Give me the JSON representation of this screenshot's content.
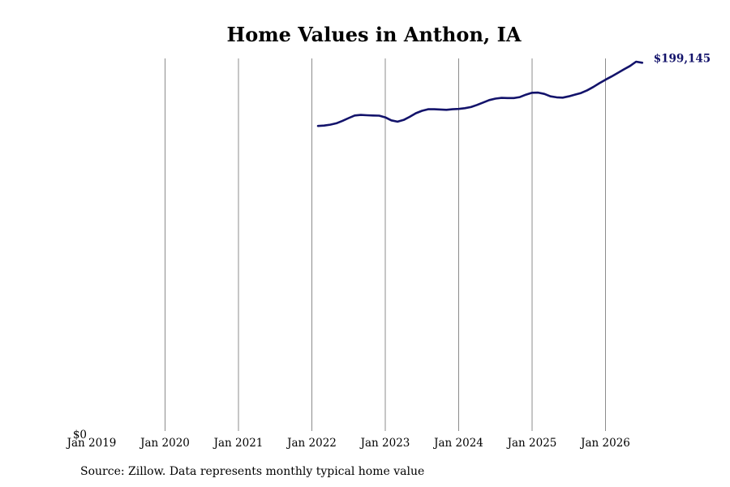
{
  "chart_data": {
    "type": "line",
    "title": "Home Values in Anthon, IA",
    "xlabel": "",
    "ylabel": "",
    "x_ticks": [
      "Jan 2019",
      "Jan 2020",
      "Jan 2021",
      "Jan 2022",
      "Jan 2023",
      "Jan 2024",
      "Jan 2025",
      "Jan 2026"
    ],
    "y_ticks": [
      "$0"
    ],
    "xlim": [
      "2019-01",
      "2026-08"
    ],
    "ylim": [
      0,
      201000
    ],
    "grid": "vertical",
    "line_color": "#13136b",
    "series": [
      {
        "x": [
          "2022-02",
          "2022-03",
          "2022-04",
          "2022-05",
          "2022-06",
          "2022-07",
          "2022-08",
          "2022-09",
          "2022-10",
          "2022-11",
          "2022-12",
          "2023-01",
          "2023-02",
          "2023-03",
          "2023-04",
          "2023-05",
          "2023-06",
          "2023-07",
          "2023-08",
          "2023-09",
          "2023-10",
          "2023-11",
          "2023-12",
          "2024-01",
          "2024-02",
          "2024-03",
          "2024-04",
          "2024-05",
          "2024-06",
          "2024-07",
          "2024-08",
          "2024-09",
          "2024-10",
          "2024-11",
          "2024-12",
          "2025-01",
          "2025-02",
          "2025-03",
          "2025-04",
          "2025-05",
          "2025-06",
          "2025-07",
          "2025-08",
          "2025-09",
          "2025-10",
          "2025-11",
          "2025-12",
          "2026-01",
          "2026-02",
          "2026-03",
          "2026-04",
          "2026-05",
          "2026-06",
          "2026-07"
        ],
        "values": [
          165400,
          165600,
          166100,
          166800,
          168100,
          169600,
          171000,
          171300,
          171100,
          171000,
          170900,
          170000,
          168400,
          167700,
          168600,
          170300,
          172200,
          173500,
          174300,
          174300,
          174200,
          174000,
          174300,
          174500,
          174900,
          175500,
          176600,
          177900,
          179200,
          180000,
          180400,
          180300,
          180300,
          180800,
          182100,
          183100,
          183200,
          182500,
          181200,
          180700,
          180500,
          181200,
          182100,
          183000,
          184400,
          186200,
          188200,
          190100,
          191800,
          193700,
          195600,
          197400,
          199700,
          199145
        ]
      }
    ],
    "end_label": "$199,145"
  },
  "source_note": "Source: Zillow. Data represents monthly typical home value"
}
